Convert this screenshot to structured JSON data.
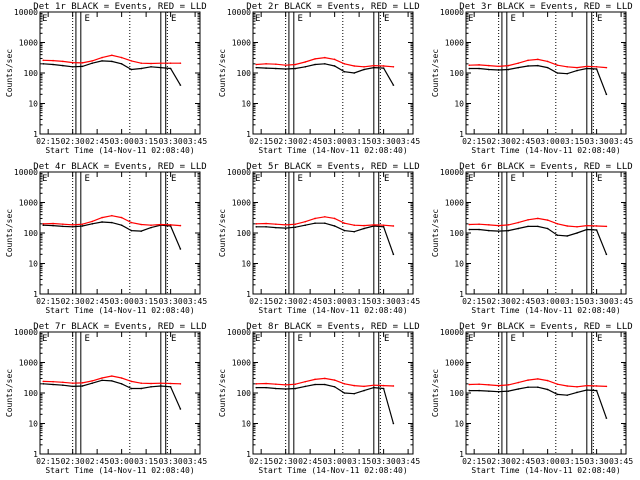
{
  "chart_data": [
    {
      "type": "line",
      "title": "Det 1r BLACK = Events, RED = LLD",
      "xlabel": "Start Time (14-Nov-11 02:08:40)",
      "ylabel": "Counts/sec",
      "yscale": "log",
      "ylim": [
        1,
        10000
      ],
      "xlim": [
        "02:10",
        "03:48"
      ],
      "x_ticks": [
        "02:15",
        "02:30",
        "02:45",
        "03:00",
        "03:15",
        "03:30",
        "03:45"
      ],
      "y_ticks": [
        "1",
        "10",
        "100",
        "1000",
        "10000"
      ],
      "markers": [
        "E",
        "E",
        "E"
      ],
      "series": [
        {
          "color": "#000000",
          "values": [
            200,
            190,
            175,
            160,
            165,
            210,
            250,
            240,
            200,
            130,
            140,
            160,
            150,
            140,
            40
          ]
        },
        {
          "color": "#ff0000",
          "values": [
            260,
            255,
            240,
            220,
            215,
            250,
            320,
            380,
            320,
            250,
            210,
            205,
            210,
            210,
            210
          ]
        }
      ]
    },
    {
      "type": "line",
      "title": "Det 2r BLACK = Events, RED = LLD",
      "xlabel": "Start Time (14-Nov-11 02:08:40)",
      "ylabel": "Counts/sec",
      "yscale": "log",
      "ylim": [
        1,
        10000
      ],
      "xlim": [
        "02:10",
        "03:48"
      ],
      "x_ticks": [
        "02:15",
        "02:30",
        "02:45",
        "03:00",
        "03:15",
        "03:30",
        "03:45"
      ],
      "y_ticks": [
        "1",
        "10",
        "100",
        "1000",
        "10000"
      ],
      "markers": [
        "E",
        "E",
        "E"
      ],
      "series": [
        {
          "color": "#000000",
          "values": [
            150,
            145,
            140,
            135,
            140,
            160,
            190,
            200,
            170,
            110,
            100,
            130,
            150,
            145,
            40
          ]
        },
        {
          "color": "#ff0000",
          "values": [
            190,
            200,
            195,
            180,
            190,
            230,
            290,
            320,
            280,
            200,
            170,
            160,
            175,
            170,
            160
          ]
        }
      ]
    },
    {
      "type": "line",
      "title": "Det 3r BLACK = Events, RED = LLD",
      "xlabel": "Start Time (14-Nov-11 02:08:40)",
      "ylabel": "Counts/sec",
      "yscale": "log",
      "ylim": [
        1,
        10000
      ],
      "xlim": [
        "02:10",
        "03:48"
      ],
      "x_ticks": [
        "02:15",
        "02:30",
        "02:45",
        "03:00",
        "03:15",
        "03:30",
        "03:45"
      ],
      "y_ticks": [
        "1",
        "10",
        "100",
        "1000",
        "10000"
      ],
      "markers": [
        "E",
        "E",
        "E"
      ],
      "series": [
        {
          "color": "#000000",
          "values": [
            140,
            140,
            130,
            125,
            130,
            150,
            170,
            175,
            150,
            100,
            95,
            120,
            140,
            135,
            20
          ]
        },
        {
          "color": "#ff0000",
          "values": [
            180,
            185,
            175,
            165,
            175,
            210,
            260,
            280,
            240,
            180,
            160,
            150,
            165,
            160,
            150
          ]
        }
      ]
    },
    {
      "type": "line",
      "title": "Det 4r BLACK = Events, RED = LLD",
      "xlabel": "Start Time (14-Nov-11 02:08:40)",
      "ylabel": "Counts/sec",
      "yscale": "log",
      "ylim": [
        1,
        10000
      ],
      "xlim": [
        "02:10",
        "03:48"
      ],
      "x_ticks": [
        "02:15",
        "02:30",
        "02:45",
        "03:00",
        "03:15",
        "03:30",
        "03:45"
      ],
      "y_ticks": [
        "1",
        "10",
        "100",
        "1000",
        "10000"
      ],
      "markers": [
        "E",
        "E",
        "E"
      ],
      "series": [
        {
          "color": "#000000",
          "values": [
            180,
            175,
            165,
            160,
            170,
            200,
            230,
            220,
            180,
            120,
            115,
            150,
            180,
            170,
            30
          ]
        },
        {
          "color": "#ff0000",
          "values": [
            200,
            205,
            195,
            185,
            195,
            240,
            320,
            370,
            320,
            220,
            190,
            180,
            190,
            185,
            175
          ]
        }
      ]
    },
    {
      "type": "line",
      "title": "Det 5r BLACK = Events, RED = LLD",
      "xlabel": "Start Time (14-Nov-11 02:08:40)",
      "ylabel": "Counts/sec",
      "yscale": "log",
      "ylim": [
        1,
        10000
      ],
      "xlim": [
        "02:10",
        "03:48"
      ],
      "x_ticks": [
        "02:15",
        "02:30",
        "02:45",
        "03:00",
        "03:15",
        "03:30",
        "03:45"
      ],
      "y_ticks": [
        "1",
        "10",
        "100",
        "1000",
        "10000"
      ],
      "markers": [
        "E",
        "E",
        "E"
      ],
      "series": [
        {
          "color": "#000000",
          "values": [
            160,
            160,
            150,
            145,
            155,
            180,
            210,
            210,
            170,
            120,
            110,
            140,
            170,
            160,
            20
          ]
        },
        {
          "color": "#ff0000",
          "values": [
            200,
            205,
            195,
            185,
            195,
            235,
            300,
            340,
            300,
            210,
            180,
            175,
            185,
            180,
            170
          ]
        }
      ]
    },
    {
      "type": "line",
      "title": "Det 6r BLACK = Events, RED = LLD",
      "xlabel": "Start Time (14-Nov-11 02:08:40)",
      "ylabel": "Counts/sec",
      "yscale": "log",
      "ylim": [
        1,
        10000
      ],
      "xlim": [
        "02:10",
        "03:48"
      ],
      "x_ticks": [
        "02:15",
        "02:30",
        "02:45",
        "03:00",
        "03:15",
        "03:30",
        "03:45"
      ],
      "y_ticks": [
        "1",
        "10",
        "100",
        "1000",
        "10000"
      ],
      "markers": [
        "E",
        "E",
        "E"
      ],
      "series": [
        {
          "color": "#000000",
          "values": [
            130,
            130,
            120,
            115,
            120,
            140,
            165,
            165,
            140,
            85,
            80,
            100,
            130,
            125,
            20
          ]
        },
        {
          "color": "#ff0000",
          "values": [
            190,
            195,
            185,
            175,
            185,
            220,
            270,
            300,
            265,
            200,
            170,
            160,
            175,
            170,
            165
          ]
        }
      ]
    },
    {
      "type": "line",
      "title": "Det 7r BLACK = Events, RED = LLD",
      "xlabel": "Start Time (14-Nov-11 02:08:40)",
      "ylabel": "Counts/sec",
      "yscale": "log",
      "ylim": [
        1,
        10000
      ],
      "xlim": [
        "02:10",
        "03:48"
      ],
      "x_ticks": [
        "02:15",
        "02:30",
        "02:45",
        "03:00",
        "03:15",
        "03:30",
        "03:45"
      ],
      "y_ticks": [
        "1",
        "10",
        "100",
        "1000",
        "10000"
      ],
      "markers": [
        "E",
        "E",
        "E"
      ],
      "series": [
        {
          "color": "#000000",
          "values": [
            200,
            190,
            180,
            165,
            170,
            210,
            260,
            250,
            200,
            140,
            140,
            160,
            170,
            160,
            30
          ]
        },
        {
          "color": "#ff0000",
          "values": [
            240,
            235,
            225,
            210,
            215,
            250,
            310,
            360,
            310,
            240,
            210,
            205,
            210,
            205,
            200
          ]
        }
      ]
    },
    {
      "type": "line",
      "title": "Det 8r BLACK = Events, RED = LLD",
      "xlabel": "Start Time (14-Nov-11 02:08:40)",
      "ylabel": "Counts/sec",
      "yscale": "log",
      "ylim": [
        1,
        10000
      ],
      "xlim": [
        "02:10",
        "03:48"
      ],
      "x_ticks": [
        "02:15",
        "02:30",
        "02:45",
        "03:00",
        "03:15",
        "03:30",
        "03:45"
      ],
      "y_ticks": [
        "1",
        "10",
        "100",
        "1000",
        "10000"
      ],
      "markers": [
        "E",
        "E",
        "E"
      ],
      "series": [
        {
          "color": "#000000",
          "values": [
            150,
            150,
            140,
            135,
            140,
            165,
            190,
            190,
            160,
            100,
            95,
            120,
            150,
            140,
            10
          ]
        },
        {
          "color": "#ff0000",
          "values": [
            200,
            205,
            195,
            185,
            195,
            235,
            280,
            300,
            265,
            200,
            175,
            165,
            180,
            175,
            170
          ]
        }
      ]
    },
    {
      "type": "line",
      "title": "Det 9r BLACK = Events, RED = LLD",
      "xlabel": "Start Time (14-Nov-11 02:08:40)",
      "ylabel": "Counts/sec",
      "yscale": "log",
      "ylim": [
        1,
        10000
      ],
      "xlim": [
        "02:10",
        "03:48"
      ],
      "x_ticks": [
        "02:15",
        "02:30",
        "02:45",
        "03:00",
        "03:15",
        "03:30",
        "03:45"
      ],
      "y_ticks": [
        "1",
        "10",
        "100",
        "1000",
        "10000"
      ],
      "markers": [
        "E",
        "E",
        "E"
      ],
      "series": [
        {
          "color": "#000000",
          "values": [
            120,
            120,
            115,
            110,
            115,
            135,
            155,
            155,
            130,
            90,
            85,
            105,
            125,
            120,
            15
          ]
        },
        {
          "color": "#ff0000",
          "values": [
            190,
            195,
            185,
            175,
            185,
            220,
            265,
            290,
            255,
            195,
            170,
            160,
            175,
            170,
            165
          ]
        }
      ]
    }
  ]
}
